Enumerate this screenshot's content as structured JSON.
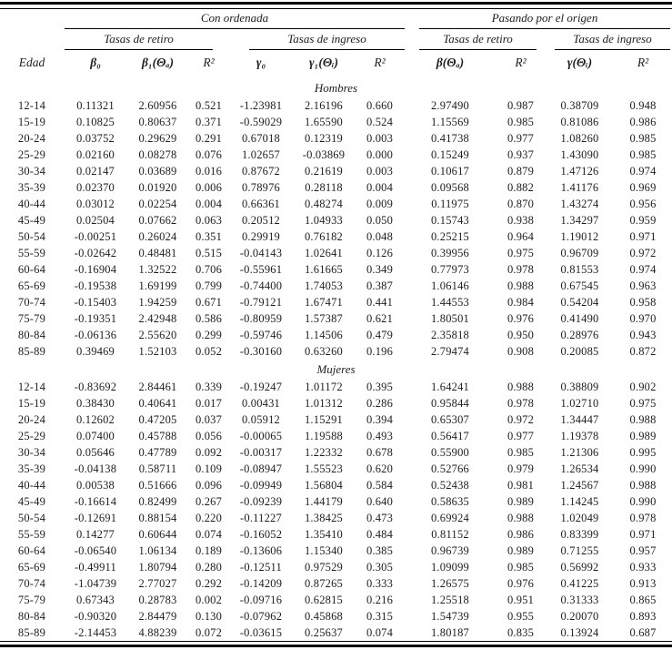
{
  "colors": {
    "background": "#ffffff",
    "text": "#1d1d1f",
    "rule": "#000000"
  },
  "table": {
    "group_headers": [
      {
        "label": "Con ordenada"
      },
      {
        "label": "Pasando por el origen"
      }
    ],
    "sub_headers": [
      "Tasas de retiro",
      "Tasas de ingreso",
      "Tasas de retiro",
      "Tasas de ingreso"
    ],
    "column_headers": [
      "Edad",
      "β₀",
      "β₁(Θₐ)",
      "R²",
      "γ₀",
      "γ₁(Θᵢ)",
      "R²",
      "β(Θₐ)",
      "R²",
      "γ(Θᵢ)",
      "R²"
    ],
    "sections": [
      {
        "label": "Hombres",
        "rows": [
          {
            "edad": "12-14",
            "values": [
              "0.11321",
              "2.60956",
              "0.521",
              "-1.23981",
              "2.16196",
              "0.660",
              "2.97490",
              "0.987",
              "0.38709",
              "0.948"
            ]
          },
          {
            "edad": "15-19",
            "values": [
              "0.10825",
              "0.80637",
              "0.371",
              "-0.59029",
              "1.65590",
              "0.524",
              "1.15569",
              "0.985",
              "0.81086",
              "0.986"
            ]
          },
          {
            "edad": "20-24",
            "values": [
              "0.03752",
              "0.29629",
              "0.291",
              "0.67018",
              "0.12319",
              "0.003",
              "0.41738",
              "0.977",
              "1.08260",
              "0.985"
            ]
          },
          {
            "edad": "25-29",
            "values": [
              "0.02160",
              "0.08278",
              "0.076",
              "1.02657",
              "-0.03869",
              "0.000",
              "0.15249",
              "0.937",
              "1.43090",
              "0.985"
            ]
          },
          {
            "edad": "30-34",
            "values": [
              "0.02147",
              "0.03689",
              "0.016",
              "0.87672",
              "0.21619",
              "0.003",
              "0.10617",
              "0.879",
              "1.47126",
              "0.974"
            ]
          },
          {
            "edad": "35-39",
            "values": [
              "0.02370",
              "0.01920",
              "0.006",
              "0.78976",
              "0.28118",
              "0.004",
              "0.09568",
              "0.882",
              "1.41176",
              "0.969"
            ]
          },
          {
            "edad": "40-44",
            "values": [
              "0.03012",
              "0.02254",
              "0.004",
              "0.66361",
              "0.48274",
              "0.009",
              "0.11975",
              "0.870",
              "1.43274",
              "0.956"
            ]
          },
          {
            "edad": "45-49",
            "values": [
              "0.02504",
              "0.07662",
              "0.063",
              "0.20512",
              "1.04933",
              "0.050",
              "0.15743",
              "0.938",
              "1.34297",
              "0.959"
            ]
          },
          {
            "edad": "50-54",
            "values": [
              "-0.00251",
              "0.26024",
              "0.351",
              "0.29919",
              "0.76182",
              "0.048",
              "0.25215",
              "0.964",
              "1.19012",
              "0.971"
            ]
          },
          {
            "edad": "55-59",
            "values": [
              "-0.02642",
              "0.48481",
              "0.515",
              "-0.04143",
              "1.02641",
              "0.126",
              "0.39956",
              "0.975",
              "0.96709",
              "0.972"
            ]
          },
          {
            "edad": "60-64",
            "values": [
              "-0.16904",
              "1.32522",
              "0.706",
              "-0.55961",
              "1.61665",
              "0.349",
              "0.77973",
              "0.978",
              "0.81553",
              "0.974"
            ]
          },
          {
            "edad": "65-69",
            "values": [
              "-0.19538",
              "1.69199",
              "0.799",
              "-0.74400",
              "1.74053",
              "0.387",
              "1.06146",
              "0.988",
              "0.67545",
              "0.963"
            ]
          },
          {
            "edad": "70-74",
            "values": [
              "-0.15403",
              "1.94259",
              "0.671",
              "-0.79121",
              "1.67471",
              "0.441",
              "1.44553",
              "0.984",
              "0.54204",
              "0.958"
            ]
          },
          {
            "edad": "75-79",
            "values": [
              "-0.19351",
              "2.42948",
              "0.586",
              "-0.80959",
              "1.57387",
              "0.621",
              "1.80501",
              "0.976",
              "0.41490",
              "0.970"
            ]
          },
          {
            "edad": "80-84",
            "values": [
              "-0.06136",
              "2.55620",
              "0.299",
              "-0.59746",
              "1.14506",
              "0.479",
              "2.35818",
              "0.950",
              "0.28976",
              "0.943"
            ]
          },
          {
            "edad": "85-89",
            "values": [
              "0.39469",
              "1.52103",
              "0.052",
              "-0.30160",
              "0.63260",
              "0.196",
              "2.79474",
              "0.908",
              "0.20085",
              "0.872"
            ]
          }
        ]
      },
      {
        "label": "Mujeres",
        "rows": [
          {
            "edad": "12-14",
            "values": [
              "-0.83692",
              "2.84461",
              "0.339",
              "-0.19247",
              "1.01172",
              "0.395",
              "1.64241",
              "0.988",
              "0.38809",
              "0.902"
            ]
          },
          {
            "edad": "15-19",
            "values": [
              "0.38430",
              "0.40641",
              "0.017",
              "0.00431",
              "1.01312",
              "0.286",
              "0.95844",
              "0.978",
              "1.02710",
              "0.975"
            ]
          },
          {
            "edad": "20-24",
            "values": [
              "0.12602",
              "0.47205",
              "0.037",
              "0.05912",
              "1.15291",
              "0.394",
              "0.65307",
              "0.972",
              "1.34447",
              "0.988"
            ]
          },
          {
            "edad": "25-29",
            "values": [
              "0.07400",
              "0.45788",
              "0.056",
              "-0.00065",
              "1.19588",
              "0.493",
              "0.56417",
              "0.977",
              "1.19378",
              "0.989"
            ]
          },
          {
            "edad": "30-34",
            "values": [
              "0.05646",
              "0.47789",
              "0.092",
              "-0.00317",
              "1.22332",
              "0.678",
              "0.55900",
              "0.985",
              "1.21306",
              "0.995"
            ]
          },
          {
            "edad": "35-39",
            "values": [
              "-0.04138",
              "0.58711",
              "0.109",
              "-0.08947",
              "1.55523",
              "0.620",
              "0.52766",
              "0.979",
              "1.26534",
              "0.990"
            ]
          },
          {
            "edad": "40-44",
            "values": [
              "0.00538",
              "0.51666",
              "0.096",
              "-0.09949",
              "1.56804",
              "0.584",
              "0.52438",
              "0.981",
              "1.24567",
              "0.988"
            ]
          },
          {
            "edad": "45-49",
            "values": [
              "-0.16614",
              "0.82499",
              "0.267",
              "-0.09239",
              "1.44179",
              "0.640",
              "0.58635",
              "0.989",
              "1.14245",
              "0.990"
            ]
          },
          {
            "edad": "50-54",
            "values": [
              "-0.12691",
              "0.88154",
              "0.220",
              "-0.11227",
              "1.38425",
              "0.473",
              "0.69924",
              "0.988",
              "1.02049",
              "0.978"
            ]
          },
          {
            "edad": "55-59",
            "values": [
              "0.14277",
              "0.60644",
              "0.074",
              "-0.16052",
              "1.35410",
              "0.484",
              "0.81152",
              "0.986",
              "0.83399",
              "0.971"
            ]
          },
          {
            "edad": "60-64",
            "values": [
              "-0.06540",
              "1.06134",
              "0.189",
              "-0.13606",
              "1.15340",
              "0.385",
              "0.96739",
              "0.989",
              "0.71255",
              "0.957"
            ]
          },
          {
            "edad": "65-69",
            "values": [
              "-0.49911",
              "1.80794",
              "0.280",
              "-0.12511",
              "0.97529",
              "0.305",
              "1.09099",
              "0.985",
              "0.56992",
              "0.933"
            ]
          },
          {
            "edad": "70-74",
            "values": [
              "-1.04739",
              "2.77027",
              "0.292",
              "-0.14209",
              "0.87265",
              "0.333",
              "1.26575",
              "0.976",
              "0.41225",
              "0.913"
            ]
          },
          {
            "edad": "75-79",
            "values": [
              "0.67343",
              "0.28783",
              "0.002",
              "-0.09716",
              "0.62815",
              "0.216",
              "1.25518",
              "0.951",
              "0.31333",
              "0.865"
            ]
          },
          {
            "edad": "80-84",
            "values": [
              "-0.90320",
              "2.84479",
              "0.130",
              "-0.07962",
              "0.45868",
              "0.315",
              "1.54739",
              "0.955",
              "0.20070",
              "0.893"
            ]
          },
          {
            "edad": "85-89",
            "values": [
              "-2.14453",
              "4.88239",
              "0.072",
              "-0.03615",
              "0.25637",
              "0.074",
              "1.80187",
              "0.835",
              "0.13924",
              "0.687"
            ]
          }
        ]
      }
    ]
  }
}
